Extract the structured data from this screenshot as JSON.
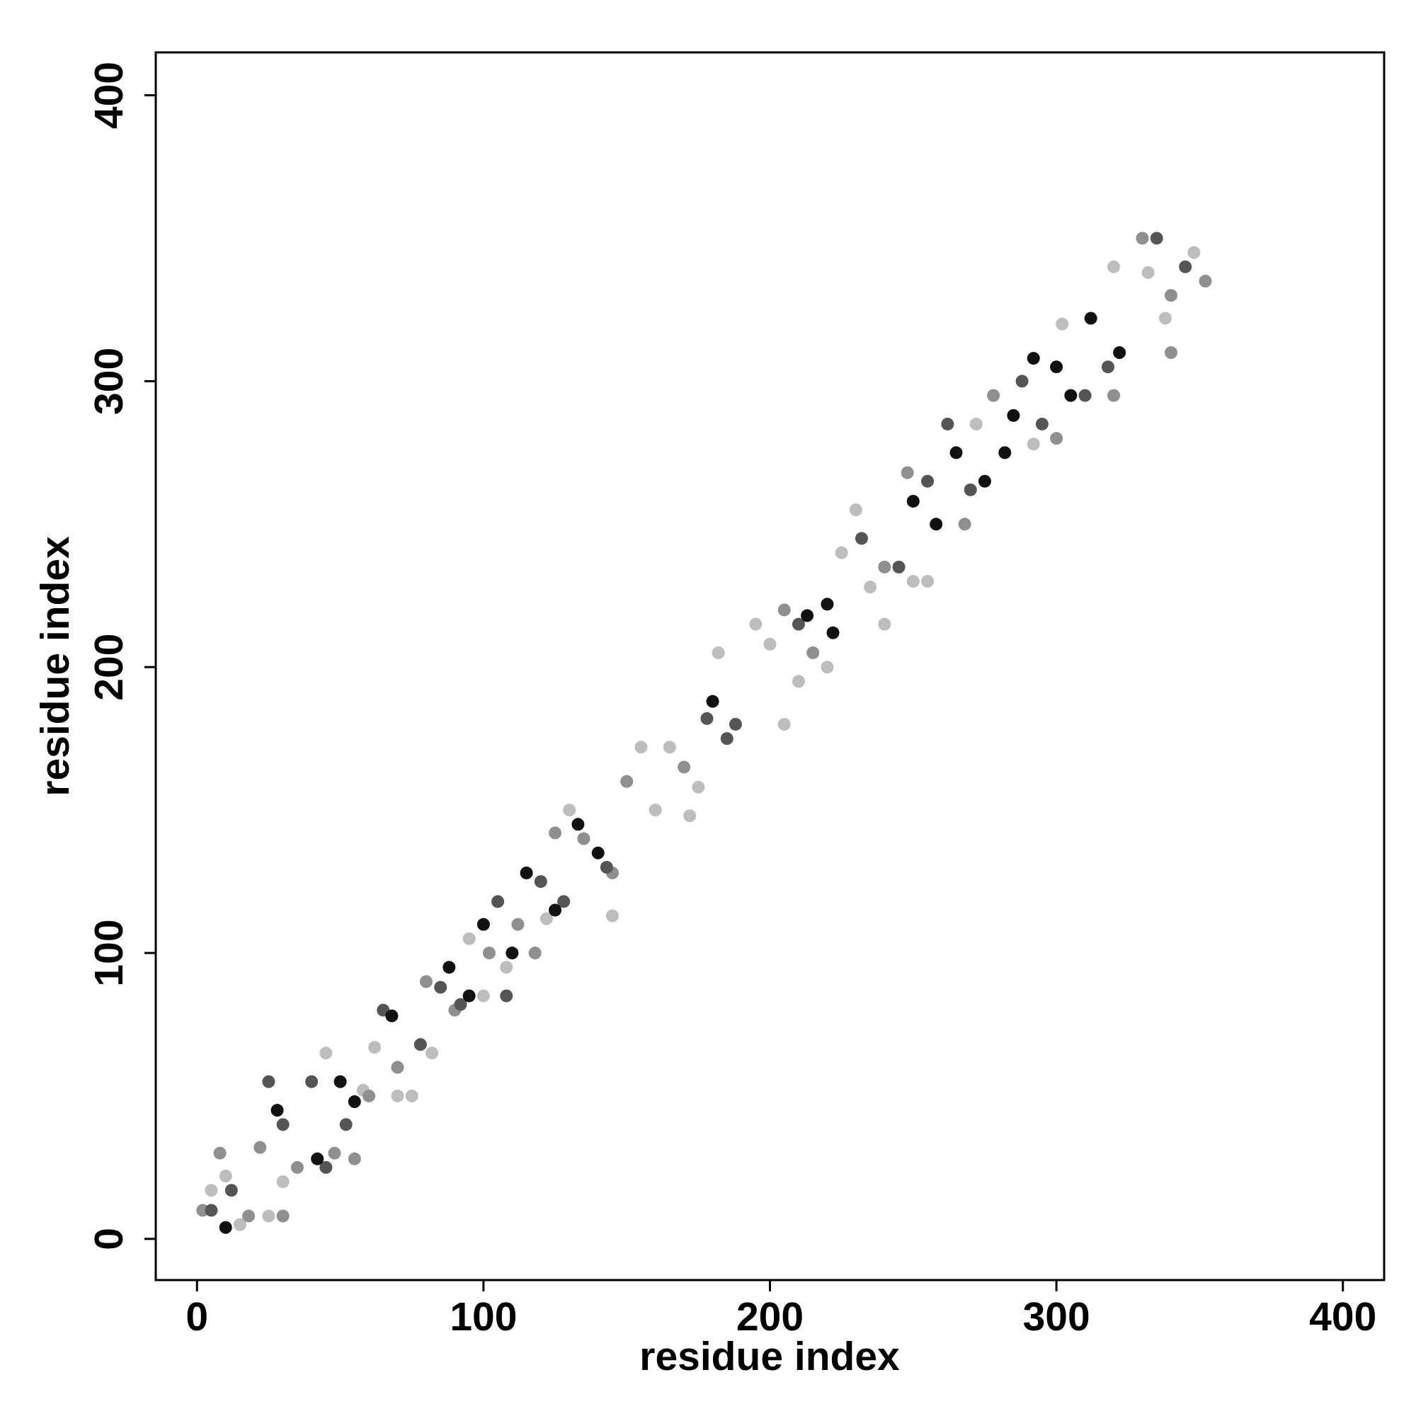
{
  "chart_data": {
    "type": "scatter",
    "xlabel": "residue index",
    "ylabel": "residue index",
    "xlim": [
      -14.4,
      414.4
    ],
    "ylim": [
      -14.4,
      415
    ],
    "xticks": [
      0,
      100,
      200,
      300,
      400
    ],
    "yticks": [
      0,
      100,
      200,
      300,
      400
    ],
    "series": [
      {
        "color": "#bdbdbd",
        "x": [
          5,
          10,
          15,
          25,
          30,
          45,
          58,
          62,
          70,
          75,
          82,
          95,
          100,
          108,
          122,
          130,
          145,
          155,
          160,
          165,
          172,
          175,
          182,
          195,
          200,
          205,
          210,
          220,
          225,
          230,
          235,
          240,
          250,
          255,
          272,
          292,
          302,
          320,
          332,
          338,
          348
        ],
        "y": [
          17,
          22,
          5,
          8,
          20,
          65,
          52,
          67,
          50,
          50,
          65,
          105,
          85,
          95,
          112,
          150,
          113,
          172,
          150,
          172,
          148,
          158,
          205,
          215,
          208,
          180,
          195,
          200,
          240,
          255,
          228,
          215,
          230,
          230,
          285,
          278,
          320,
          340,
          338,
          322,
          345
        ]
      },
      {
        "color": "#8f8f8f",
        "x": [
          2,
          8,
          18,
          30,
          22,
          35,
          48,
          55,
          60,
          70,
          80,
          90,
          102,
          112,
          118,
          125,
          135,
          145,
          150,
          170,
          205,
          215,
          240,
          248,
          268,
          278,
          300,
          320,
          330,
          340,
          352,
          340
        ],
        "y": [
          10,
          30,
          8,
          8,
          32,
          25,
          30,
          28,
          50,
          60,
          90,
          80,
          100,
          110,
          100,
          142,
          140,
          128,
          160,
          165,
          220,
          205,
          235,
          268,
          250,
          295,
          280,
          295,
          350,
          330,
          335,
          310
        ]
      },
      {
        "color": "#555555",
        "x": [
          5,
          12,
          25,
          30,
          40,
          45,
          52,
          65,
          78,
          85,
          92,
          105,
          108,
          120,
          128,
          143,
          178,
          185,
          188,
          210,
          232,
          245,
          255,
          262,
          270,
          288,
          295,
          310,
          318,
          345,
          335
        ],
        "y": [
          10,
          17,
          55,
          40,
          55,
          25,
          40,
          80,
          68,
          88,
          82,
          118,
          85,
          125,
          118,
          130,
          182,
          175,
          180,
          215,
          245,
          235,
          265,
          285,
          262,
          300,
          285,
          295,
          305,
          340,
          350
        ]
      },
      {
        "color": "#111111",
        "x": [
          10,
          28,
          42,
          50,
          55,
          68,
          88,
          95,
          100,
          110,
          115,
          125,
          133,
          140,
          180,
          213,
          220,
          222,
          250,
          258,
          265,
          275,
          285,
          292,
          305,
          312,
          322,
          300,
          282
        ],
        "y": [
          4,
          45,
          28,
          55,
          48,
          78,
          95,
          85,
          110,
          100,
          128,
          115,
          145,
          135,
          188,
          218,
          222,
          212,
          258,
          250,
          275,
          265,
          288,
          308,
          295,
          322,
          310,
          305,
          275
        ]
      }
    ]
  }
}
